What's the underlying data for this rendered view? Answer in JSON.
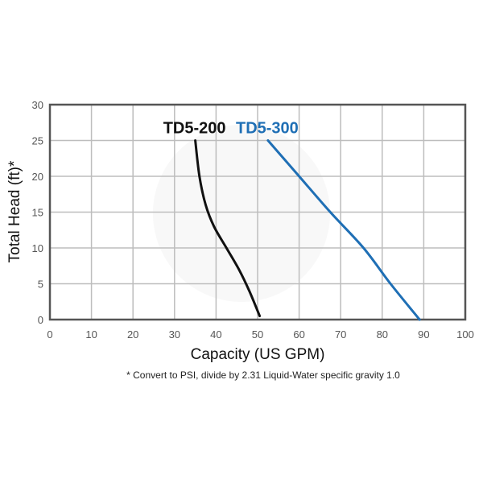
{
  "chart_data": {
    "type": "line",
    "xlabel": "Capacity (US GPM)",
    "ylabel": "Total Head (ft)*",
    "xlim": [
      0,
      100
    ],
    "ylim": [
      0,
      30
    ],
    "xticks": [
      "0",
      "10",
      "20",
      "30",
      "40",
      "50",
      "60",
      "70",
      "80",
      "90",
      "100"
    ],
    "yticks": [
      "0",
      "5",
      "10",
      "15",
      "20",
      "25",
      "30"
    ],
    "grid": true,
    "footnote": "* Convert to PSI, divide by 2.31  Liquid-Water specific gravity 1.0",
    "series": [
      {
        "name": "TD5-200",
        "color": "#111111",
        "points": [
          [
            35,
            25
          ],
          [
            36,
            20
          ],
          [
            37.5,
            16
          ],
          [
            39.5,
            13
          ],
          [
            42.5,
            10
          ],
          [
            45.5,
            7
          ],
          [
            48,
            4
          ],
          [
            50.5,
            0.5
          ]
        ]
      },
      {
        "name": "TD5-300",
        "color": "#1f6fb5",
        "points": [
          [
            52.5,
            25
          ],
          [
            60,
            20
          ],
          [
            67.5,
            15
          ],
          [
            75.5,
            10
          ],
          [
            82,
            5
          ],
          [
            89,
            0
          ]
        ]
      }
    ]
  },
  "colors": {
    "frame": "#555555",
    "grid": "#bdbdbd"
  }
}
